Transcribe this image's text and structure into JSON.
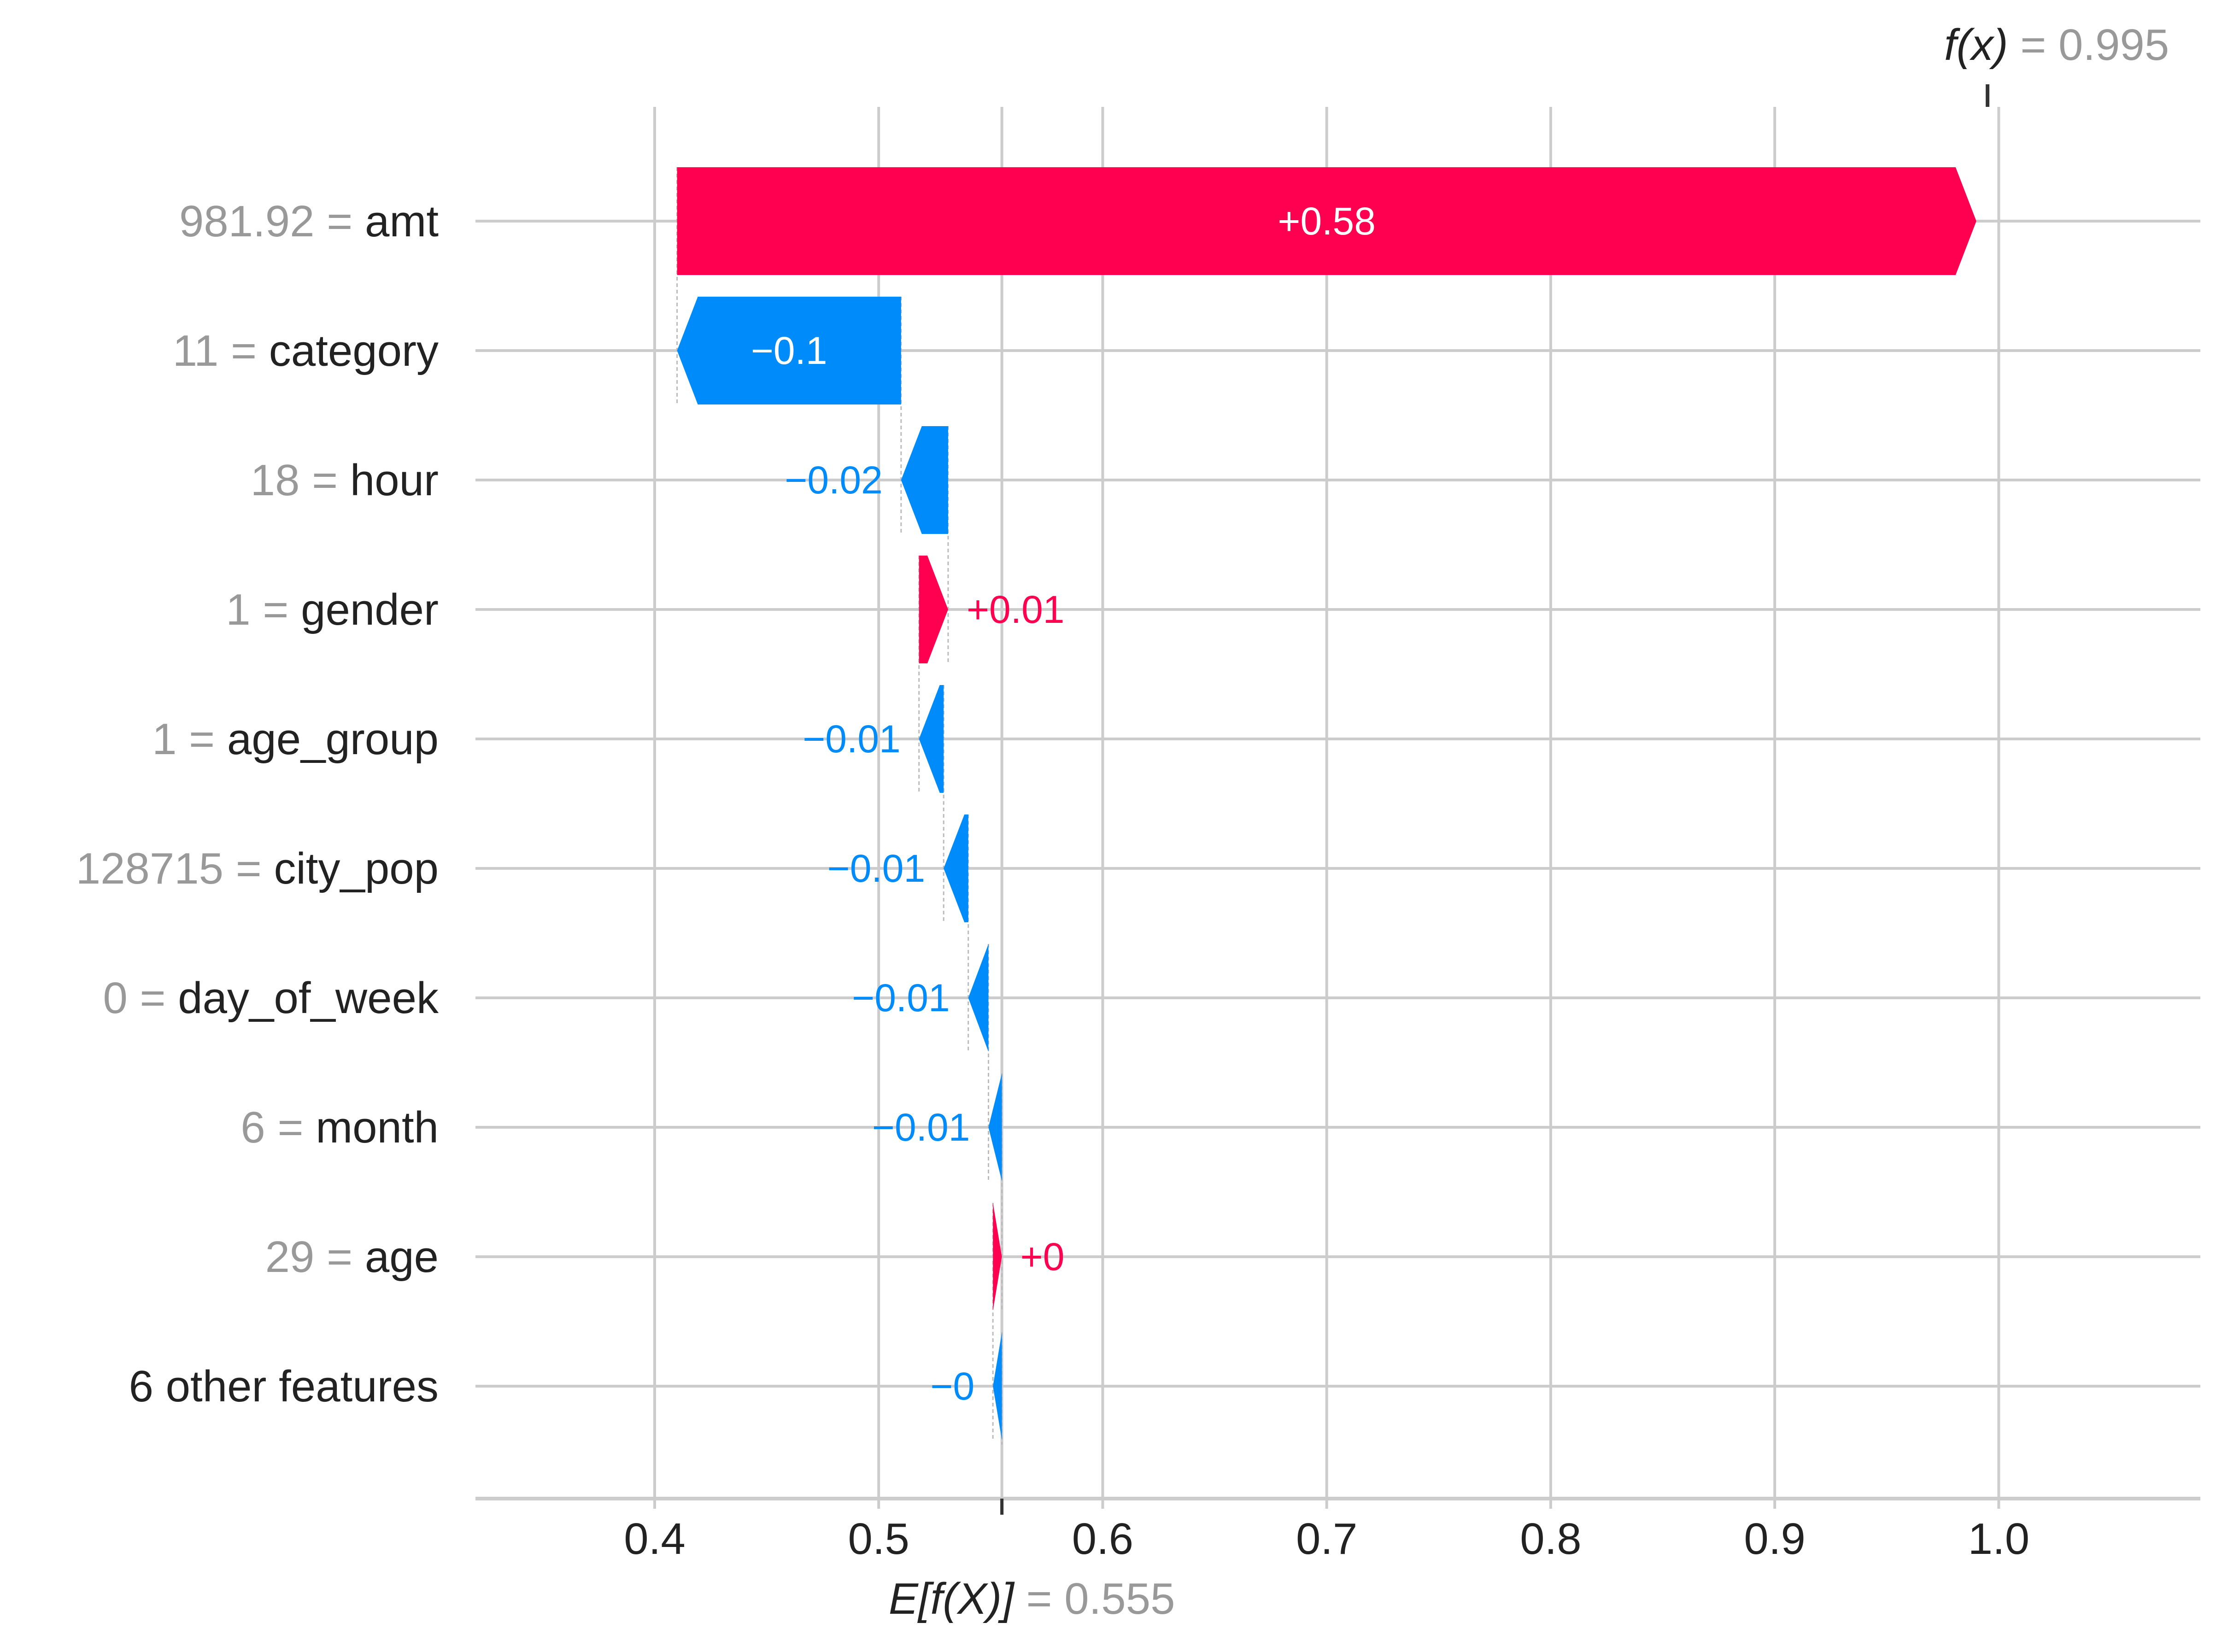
{
  "chart_data": {
    "type": "waterfall",
    "base_value": 0.555,
    "output_value": 0.995,
    "base_label": {
      "name": "E[f(X)]",
      "value_text": "= 0.555"
    },
    "output_label": {
      "name": "f(x)",
      "value_text": "= 0.995"
    },
    "xlim": [
      0.32,
      1.09
    ],
    "xticks": [
      0.4,
      0.5,
      0.6,
      0.7,
      0.8,
      0.9,
      1.0
    ],
    "xtick_labels": [
      "0.4",
      "0.5",
      "0.6",
      "0.7",
      "0.8",
      "0.9",
      "1.0"
    ],
    "grid": true,
    "features": [
      {
        "value": "981.92",
        "name": "amt",
        "contribution": 0.58,
        "label": "+0.58"
      },
      {
        "value": "11",
        "name": "category",
        "contribution": -0.1,
        "label": "−0.1"
      },
      {
        "value": "18",
        "name": "hour",
        "contribution": -0.021,
        "label": "−0.02"
      },
      {
        "value": "1",
        "name": "gender",
        "contribution": 0.013,
        "label": "+0.01"
      },
      {
        "value": "1",
        "name": "age_group",
        "contribution": -0.011,
        "label": "−0.01"
      },
      {
        "value": "128715",
        "name": "city_pop",
        "contribution": -0.011,
        "label": "−0.01"
      },
      {
        "value": "0",
        "name": "day_of_week",
        "contribution": -0.009,
        "label": "−0.01"
      },
      {
        "value": "6",
        "name": "month",
        "contribution": -0.006,
        "label": "−0.01"
      },
      {
        "value": "29",
        "name": "age",
        "contribution": 0.004,
        "label": "+0"
      },
      {
        "value": "",
        "name": "6 other features",
        "contribution": -0.004,
        "label": "−0"
      }
    ],
    "colors": {
      "positive": "#ff0051",
      "negative": "#008bfb",
      "grid": "#cccccc",
      "axis": "#cccccc",
      "label_dark": "#222222",
      "label_gray": "#999999",
      "tick_text": "#222222",
      "bar_text": "#ffffff"
    }
  }
}
